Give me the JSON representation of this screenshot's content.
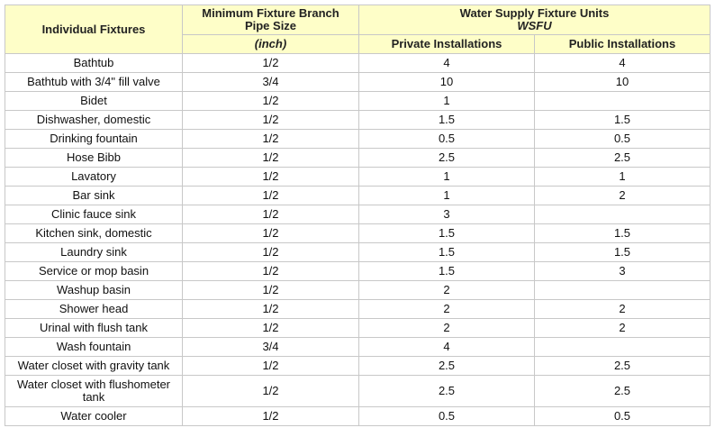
{
  "header": {
    "col1": "Individual Fixtures",
    "col2_line1": "Minimum Fixture Branch",
    "col2_line2": "Pipe Size",
    "col2_unit": "(inch)",
    "group_line1": "Water Supply Fixture Units",
    "group_line2": "WSFU",
    "col3": "Private Installations",
    "col4": "Public Installations"
  },
  "rows": [
    {
      "fixture": "Bathtub",
      "pipe": "1/2",
      "private": "4",
      "public": "4"
    },
    {
      "fixture": "Bathtub with 3/4\" fill valve",
      "pipe": "3/4",
      "private": "10",
      "public": "10"
    },
    {
      "fixture": "Bidet",
      "pipe": "1/2",
      "private": "1",
      "public": ""
    },
    {
      "fixture": "Dishwasher, domestic",
      "pipe": "1/2",
      "private": "1.5",
      "public": "1.5"
    },
    {
      "fixture": "Drinking fountain",
      "pipe": "1/2",
      "private": "0.5",
      "public": "0.5"
    },
    {
      "fixture": "Hose Bibb",
      "pipe": "1/2",
      "private": "2.5",
      "public": "2.5"
    },
    {
      "fixture": "Lavatory",
      "pipe": "1/2",
      "private": "1",
      "public": "1"
    },
    {
      "fixture": "Bar sink",
      "pipe": "1/2",
      "private": "1",
      "public": "2"
    },
    {
      "fixture": "Clinic fauce sink",
      "pipe": "1/2",
      "private": "3",
      "public": ""
    },
    {
      "fixture": "Kitchen sink, domestic",
      "pipe": "1/2",
      "private": "1.5",
      "public": "1.5"
    },
    {
      "fixture": "Laundry sink",
      "pipe": "1/2",
      "private": "1.5",
      "public": "1.5"
    },
    {
      "fixture": "Service or mop basin",
      "pipe": "1/2",
      "private": "1.5",
      "public": "3"
    },
    {
      "fixture": "Washup basin",
      "pipe": "1/2",
      "private": "2",
      "public": ""
    },
    {
      "fixture": "Shower head",
      "pipe": "1/2",
      "private": "2",
      "public": "2"
    },
    {
      "fixture": "Urinal with flush tank",
      "pipe": "1/2",
      "private": "2",
      "public": "2"
    },
    {
      "fixture": "Wash fountain",
      "pipe": "3/4",
      "private": "4",
      "public": ""
    },
    {
      "fixture": "Water closet with gravity tank",
      "pipe": "1/2",
      "private": "2.5",
      "public": "2.5"
    },
    {
      "fixture": "Water closet with flushometer tank",
      "pipe": "1/2",
      "private": "2.5",
      "public": "2.5"
    },
    {
      "fixture": "Water cooler",
      "pipe": "1/2",
      "private": "0.5",
      "public": "0.5"
    }
  ]
}
